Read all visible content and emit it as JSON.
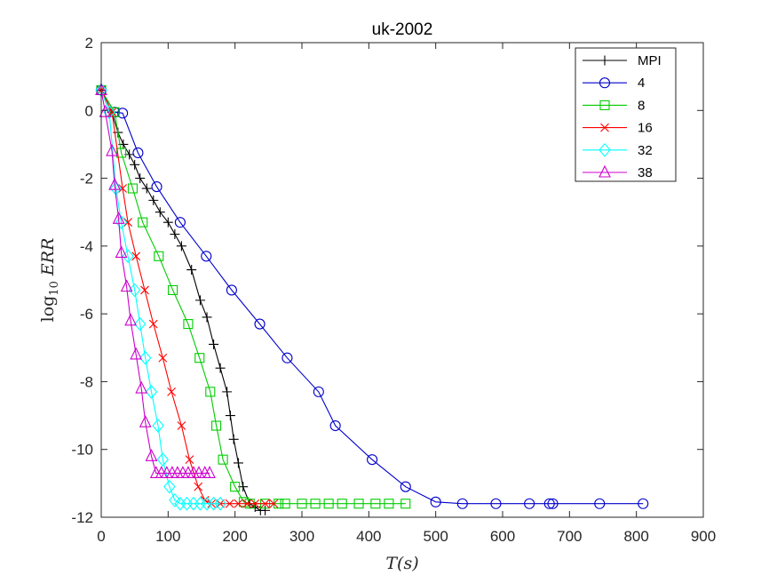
{
  "chart_data": {
    "type": "line",
    "title": "uk-2002",
    "xlabel": "T(s)",
    "ylabel": "log10 ERR",
    "xlim": [
      0,
      900
    ],
    "ylim": [
      -12,
      2
    ],
    "xticks": [
      0,
      100,
      200,
      300,
      400,
      500,
      600,
      700,
      800,
      900
    ],
    "yticks": [
      2,
      0,
      -2,
      -4,
      -6,
      -8,
      -10,
      -12
    ],
    "grid": false,
    "legend_position": "top-right",
    "series": [
      {
        "name": "MPI",
        "color": "#000000",
        "marker": "plus",
        "x": [
          0,
          16,
          25,
          33,
          42,
          50,
          58,
          68,
          78,
          88,
          100,
          110,
          120,
          135,
          148,
          158,
          168,
          178,
          188,
          193,
          198,
          205,
          212,
          222,
          230,
          238,
          245
        ],
        "y": [
          0.6,
          -0.05,
          -0.65,
          -1.0,
          -1.3,
          -1.6,
          -2.0,
          -2.3,
          -2.65,
          -3.0,
          -3.3,
          -3.65,
          -4.0,
          -4.7,
          -5.6,
          -6.1,
          -6.9,
          -7.6,
          -8.3,
          -9.0,
          -9.7,
          -10.4,
          -11.1,
          -11.6,
          -11.7,
          -11.8,
          -11.8
        ]
      },
      {
        "name": "4",
        "color": "#0000CC",
        "marker": "circle",
        "x": [
          0,
          20,
          32,
          55,
          83,
          118,
          157,
          195,
          237,
          278,
          325,
          350,
          405,
          455,
          500,
          540,
          590,
          640,
          670,
          675,
          745,
          810
        ],
        "y": [
          0.6,
          -0.05,
          -0.08,
          -1.25,
          -2.25,
          -3.3,
          -4.3,
          -5.3,
          -6.3,
          -7.3,
          -8.3,
          -9.3,
          -10.3,
          -11.1,
          -11.55,
          -11.6,
          -11.6,
          -11.6,
          -11.6,
          -11.6,
          -11.6,
          -11.6
        ]
      },
      {
        "name": "8",
        "color": "#00CC00",
        "marker": "square",
        "x": [
          0,
          20,
          30,
          47,
          62,
          86,
          107,
          130,
          147,
          163,
          172,
          182,
          200,
          213,
          222,
          245,
          265,
          275,
          300,
          320,
          340,
          360,
          385,
          410,
          430,
          455
        ],
        "y": [
          0.6,
          -0.05,
          -1.25,
          -2.3,
          -3.3,
          -4.3,
          -5.3,
          -6.3,
          -7.3,
          -8.3,
          -9.3,
          -10.3,
          -11.1,
          -11.55,
          -11.6,
          -11.6,
          -11.6,
          -11.6,
          -11.6,
          -11.6,
          -11.6,
          -11.6,
          -11.6,
          -11.6,
          -11.6,
          -11.6
        ]
      },
      {
        "name": "16",
        "color": "#FF0000",
        "marker": "x",
        "x": [
          0,
          16,
          32,
          40,
          52,
          65,
          78,
          92,
          105,
          120,
          132,
          145,
          155,
          165,
          178,
          192,
          205,
          218,
          230,
          245,
          258
        ],
        "y": [
          0.6,
          -0.05,
          -2.3,
          -3.3,
          -4.3,
          -5.3,
          -6.3,
          -7.3,
          -8.3,
          -9.3,
          -10.3,
          -11.1,
          -11.5,
          -11.6,
          -11.6,
          -11.6,
          -11.6,
          -11.6,
          -11.6,
          -11.6,
          -11.6
        ]
      },
      {
        "name": "32",
        "color": "#00FFFF",
        "marker": "diamond",
        "x": [
          0,
          12,
          22,
          30,
          40,
          50,
          58,
          66,
          75,
          85,
          92,
          102,
          110,
          118,
          128,
          138,
          148,
          158,
          168,
          178
        ],
        "y": [
          0.6,
          -0.05,
          -2.3,
          -3.3,
          -4.3,
          -5.3,
          -6.3,
          -7.3,
          -8.3,
          -9.3,
          -10.3,
          -11.1,
          -11.5,
          -11.6,
          -11.6,
          -11.6,
          -11.6,
          -11.6,
          -11.6,
          -11.6
        ]
      },
      {
        "name": "38",
        "color": "#CC00CC",
        "marker": "triangle",
        "x": [
          0,
          6,
          16,
          20,
          26,
          30,
          38,
          44,
          52,
          60,
          66,
          75,
          82,
          90,
          98,
          106,
          114,
          122,
          130,
          138,
          146,
          155,
          162
        ],
        "y": [
          0.6,
          -0.05,
          -1.2,
          -2.2,
          -3.2,
          -4.2,
          -5.2,
          -6.2,
          -7.2,
          -8.2,
          -9.2,
          -10.2,
          -10.7,
          -10.7,
          -10.7,
          -10.7,
          -10.7,
          -10.7,
          -10.7,
          -10.7,
          -10.7,
          -10.7,
          -10.7
        ]
      }
    ]
  }
}
